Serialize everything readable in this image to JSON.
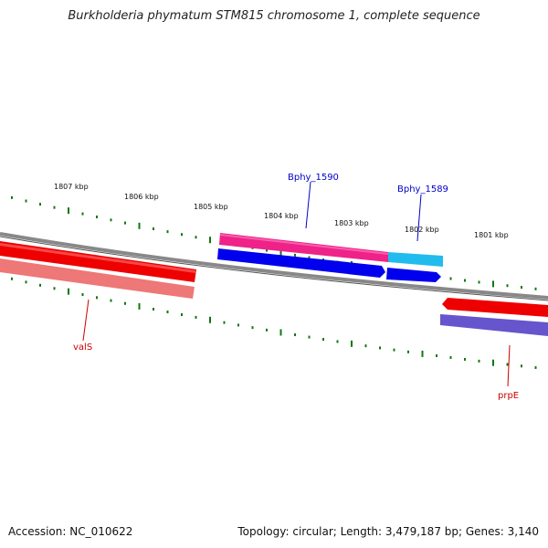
{
  "header": {
    "title": "Burkholderia phymatum STM815 chromosome 1, complete sequence"
  },
  "footer": {
    "accession": "Accession: NC_010622",
    "topology": "Topology: circular; Length: 3,479,187 bp; Genes: 3,140"
  },
  "scale_labels": [
    "1807 kbp",
    "1806 kbp",
    "1805 kbp",
    "1804 kbp",
    "1803 kbp",
    "1802 kbp",
    "1801 kbp"
  ],
  "genes": {
    "forward": [
      {
        "name": "Bphy_1590",
        "color": "#0000ee"
      },
      {
        "name": "Bphy_1589",
        "color": "#0000ee"
      }
    ],
    "reverse": [
      {
        "name": "valS",
        "color": "#ee0000"
      },
      {
        "name": "prpE",
        "color": "#ee0000"
      }
    ]
  },
  "colors": {
    "backbone": "#888888",
    "forward_cds": "#0000ee",
    "forward_cds_alt": "#1166ff",
    "reverse_cds": "#ee0000",
    "forward_rna": "#ee2288",
    "forward_rna_alt": "#22bbee",
    "reverse_rna": "#ee7777",
    "reverse_rna_alt": "#6655cc",
    "ticks": "#117711",
    "label_forward": "#0000cc",
    "label_reverse": "#cc0000"
  }
}
